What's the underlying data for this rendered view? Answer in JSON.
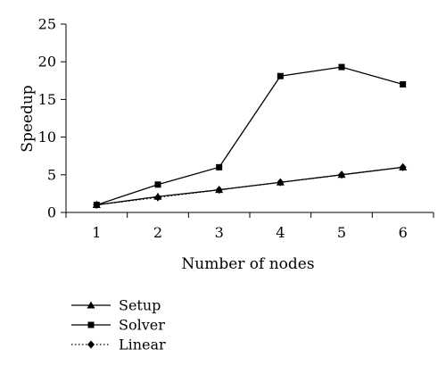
{
  "chart_data": {
    "type": "line",
    "title": "",
    "xlabel": "Number of nodes",
    "ylabel": "Speedup",
    "x": [
      1,
      2,
      3,
      4,
      5,
      6
    ],
    "xlim": [
      0.5,
      6.5
    ],
    "ylim": [
      0,
      25
    ],
    "yticks": [
      0,
      5,
      10,
      15,
      20,
      25
    ],
    "grid": false,
    "legend_position": "bottom-left",
    "series": [
      {
        "name": "Setup",
        "marker": "triangle",
        "line": "solid",
        "color": "#000000",
        "values": [
          1,
          2.1,
          3,
          4,
          5,
          6
        ]
      },
      {
        "name": "Solver",
        "marker": "square",
        "line": "solid",
        "color": "#000000",
        "values": [
          1,
          3.7,
          6,
          18.1,
          19.3,
          17
        ]
      },
      {
        "name": "Linear",
        "marker": "diamond",
        "line": "dotted",
        "color": "#000000",
        "values": [
          1,
          2,
          3,
          4,
          5,
          6
        ]
      }
    ]
  }
}
